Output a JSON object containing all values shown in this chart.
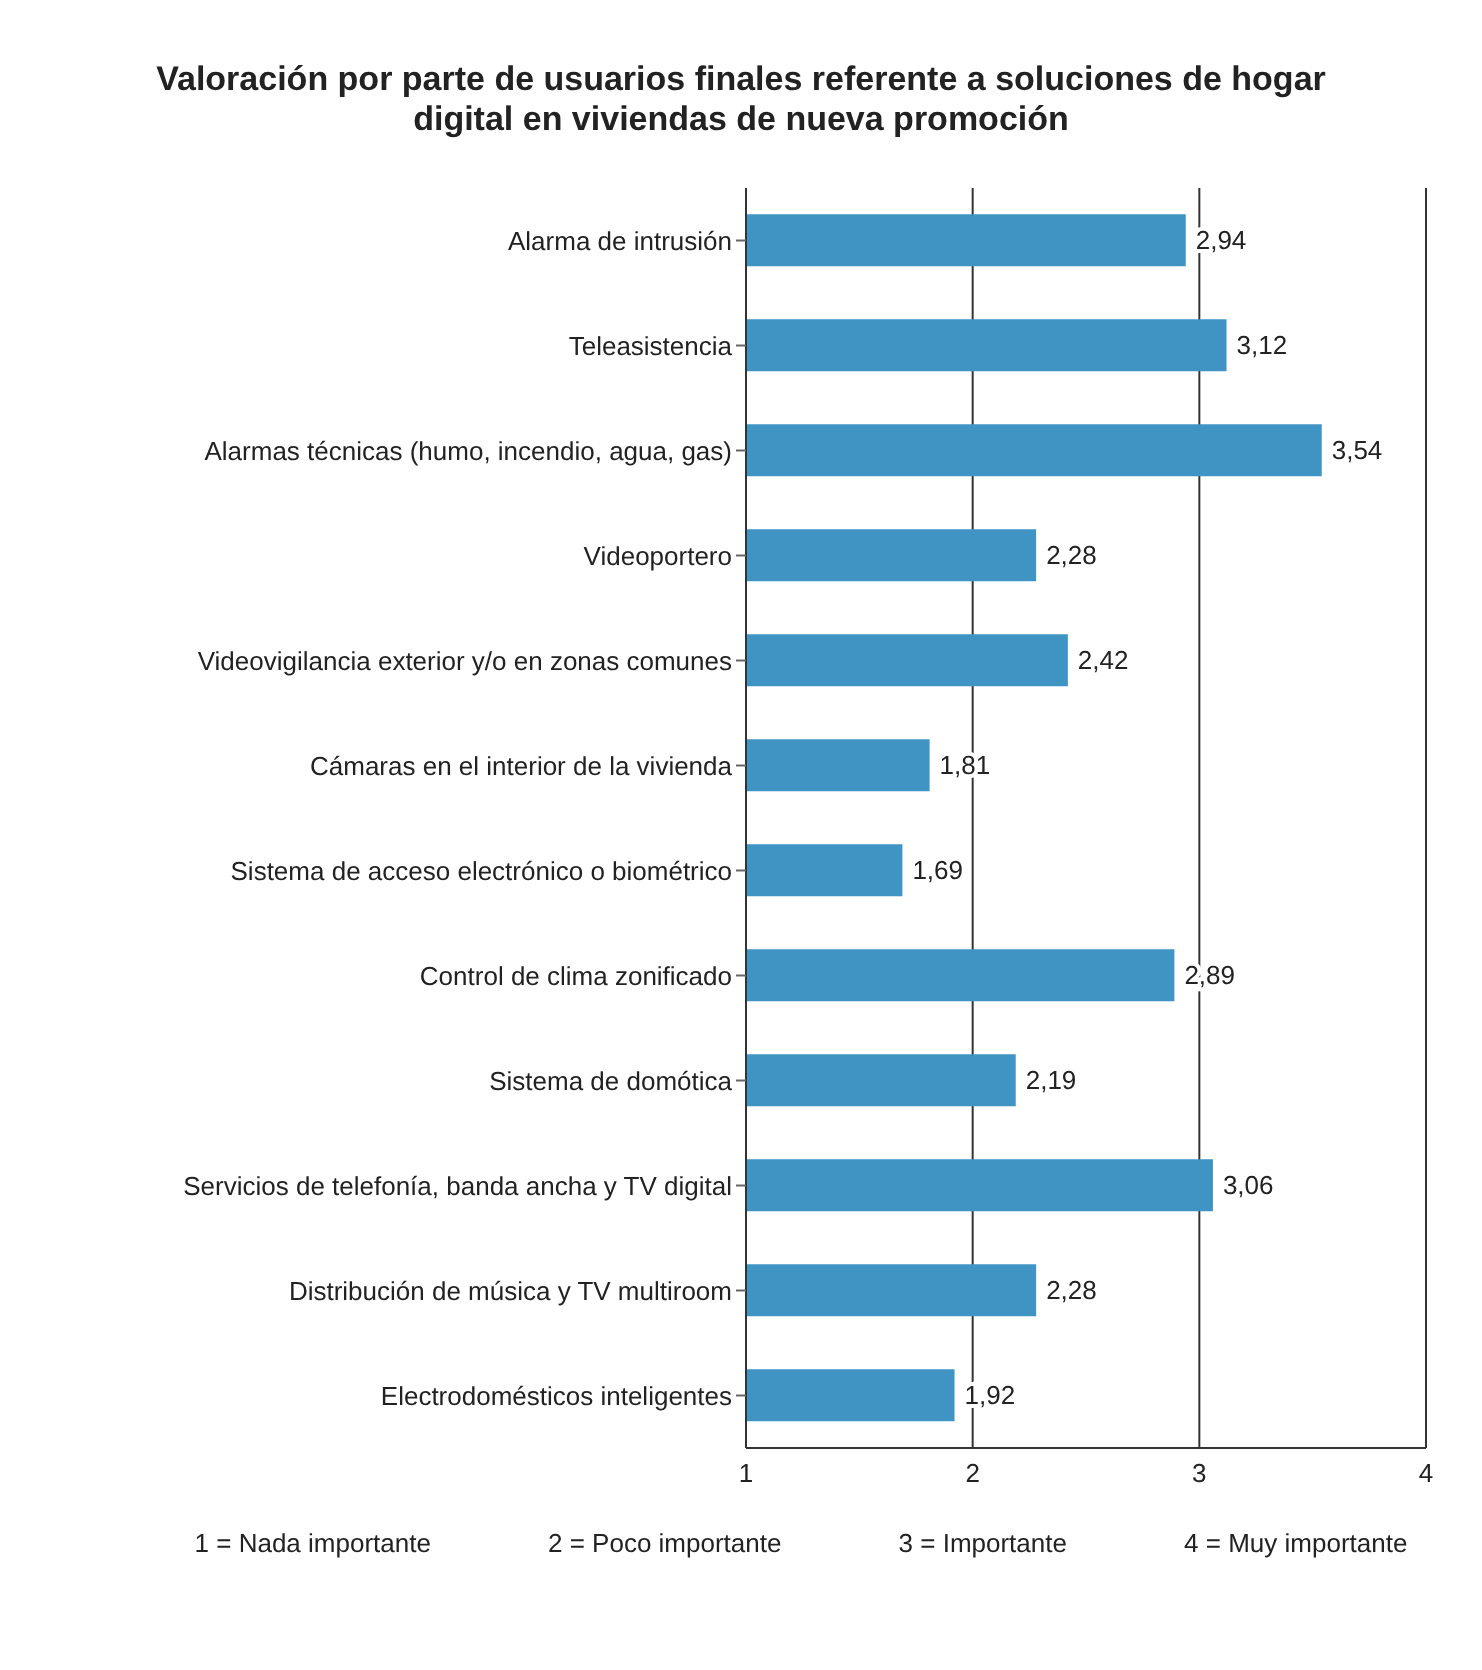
{
  "chart_data": {
    "type": "bar",
    "orientation": "horizontal",
    "title": "Valoración por parte de usuarios finales referente a soluciones de hogar digital en viviendas de nueva promoción",
    "categories": [
      "Alarma de intrusión",
      "Teleasistencia",
      "Alarmas técnicas (humo, incendio, agua, gas)",
      "Videoportero",
      "Videovigilancia exterior y/o en zonas comunes",
      "Cámaras en el interior de la vivienda",
      "Sistema de acceso electrónico o biométrico",
      "Control de clima zonificado",
      "Sistema de domótica",
      "Servicios de telefonía, banda ancha y TV digital",
      "Distribución de música y TV multiroom",
      "Electrodomésticos inteligentes"
    ],
    "values": [
      2.94,
      3.12,
      3.54,
      2.28,
      2.42,
      1.81,
      1.69,
      2.89,
      2.19,
      3.06,
      2.28,
      1.92
    ],
    "value_labels": [
      "2,94",
      "3,12",
      "3,54",
      "2,28",
      "2,42",
      "1,81",
      "1,69",
      "2,89",
      "2,19",
      "3,06",
      "2,28",
      "1,92"
    ],
    "color": "#3f94c4",
    "xlim": [
      1,
      4
    ],
    "xticks": [
      1,
      2,
      3,
      4
    ],
    "grid": "x",
    "annotations": [
      "1 = Nada importante",
      "2 = Poco importante",
      "3 = Importante",
      "4 = Muy importante"
    ]
  }
}
